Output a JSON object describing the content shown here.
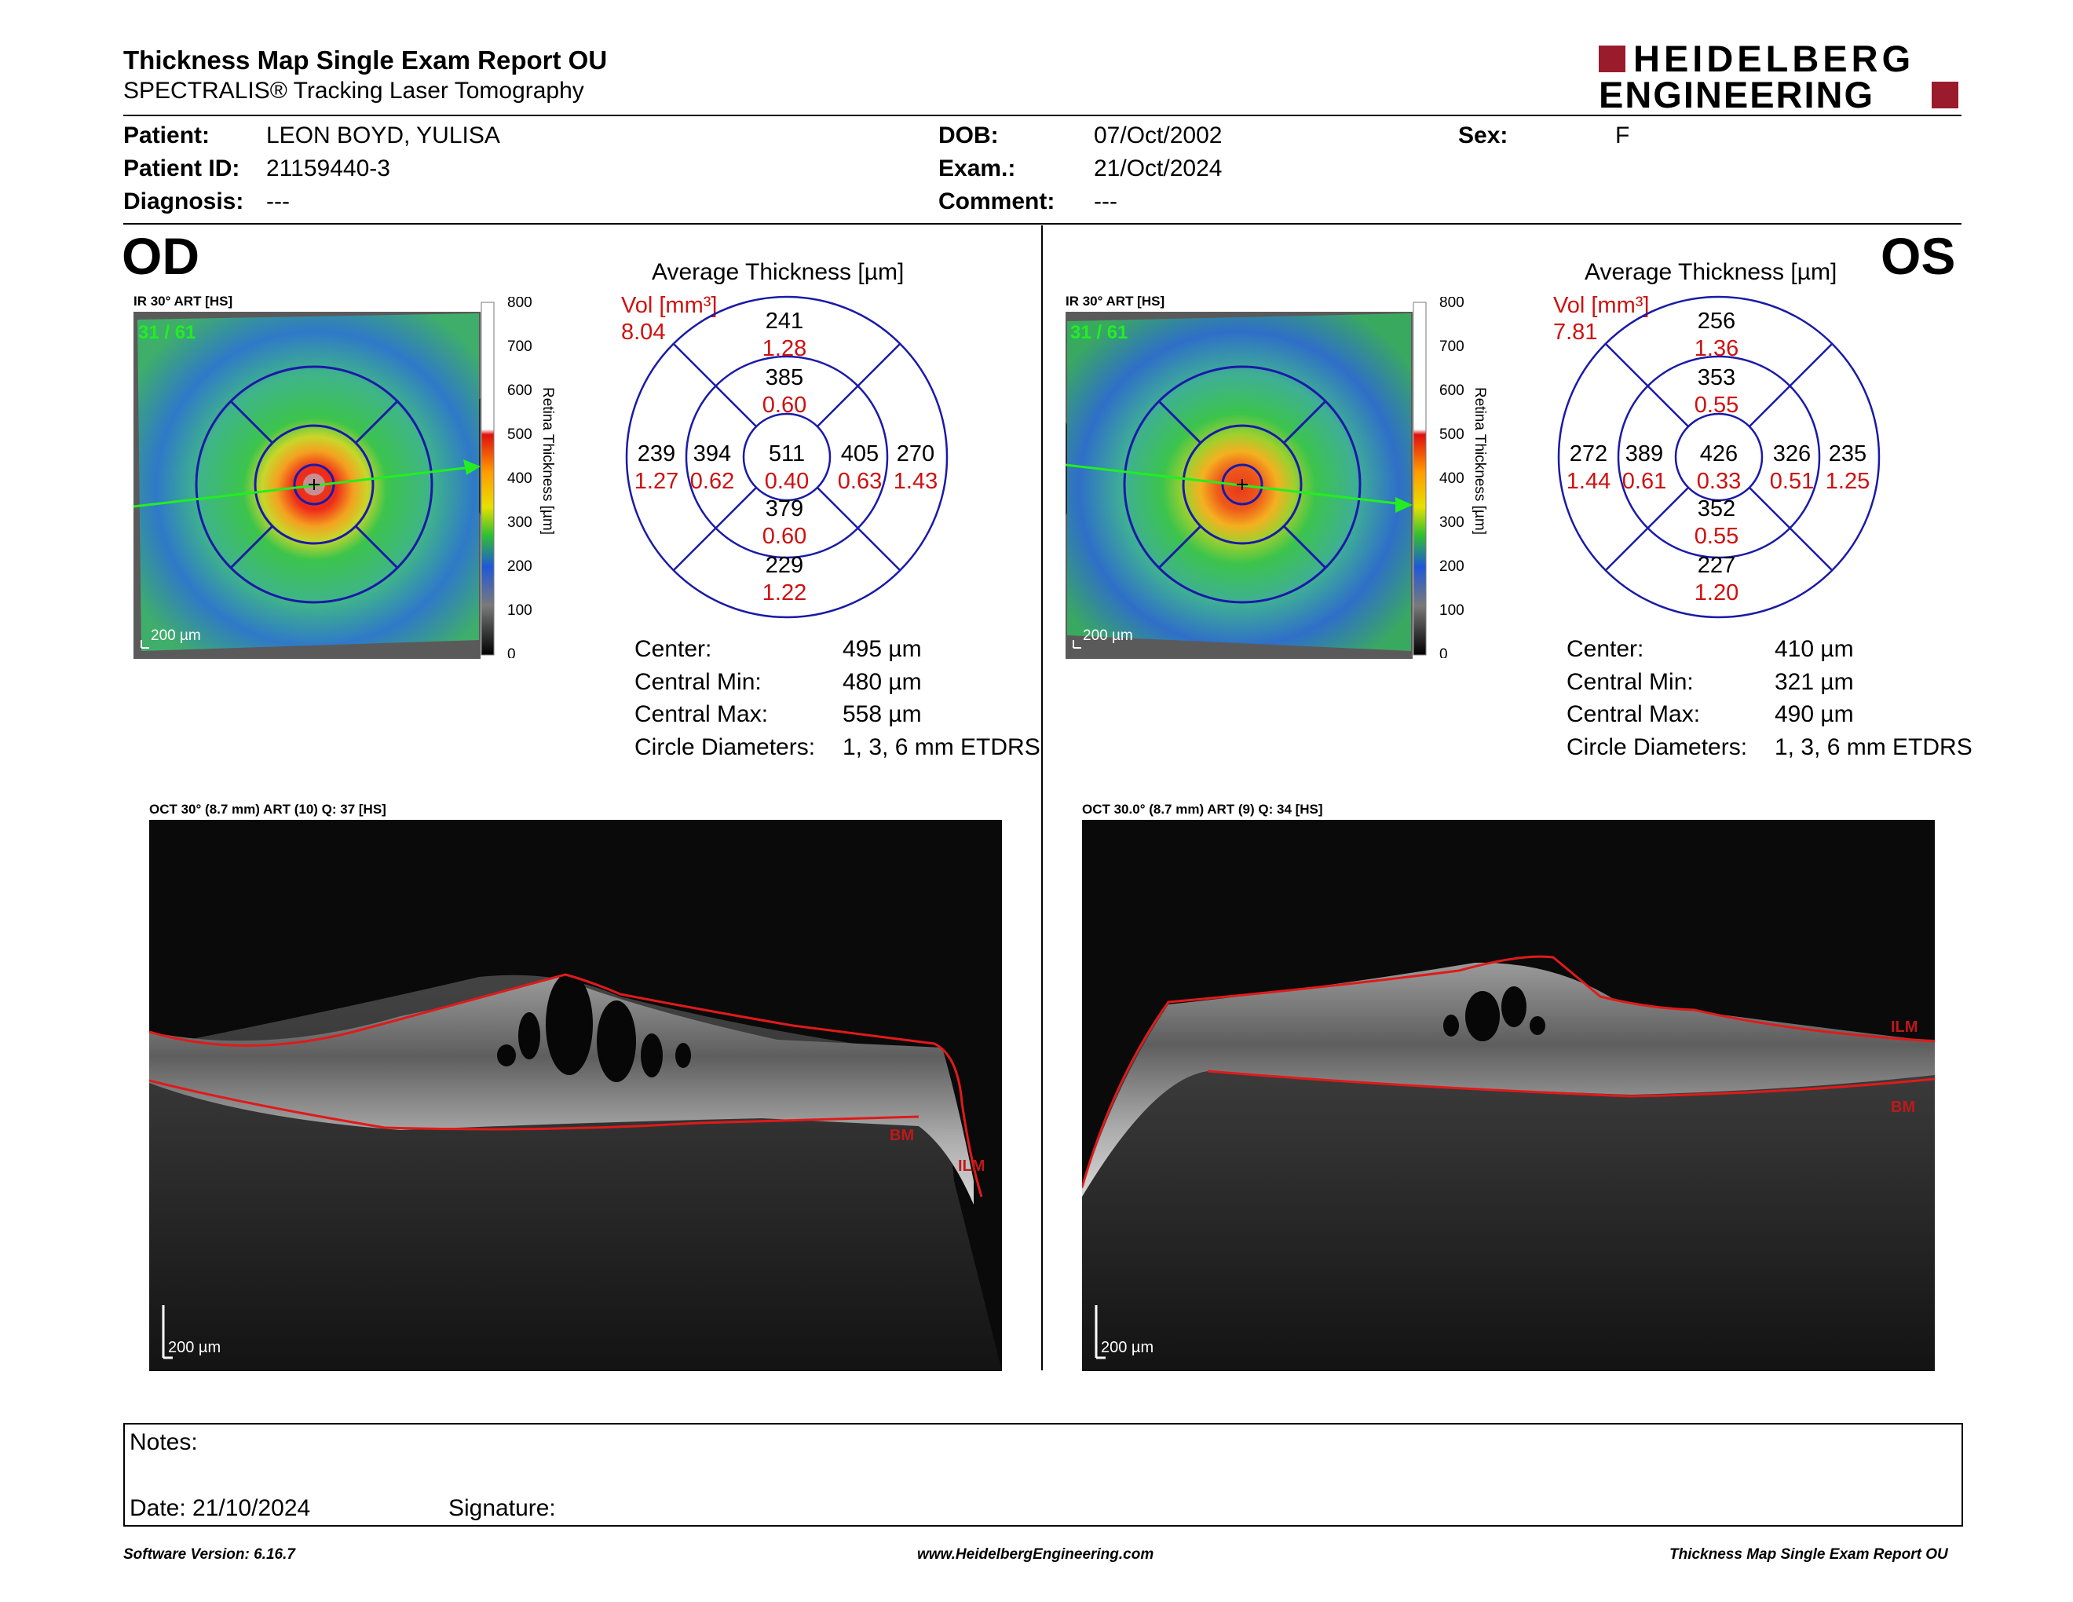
{
  "header": {
    "title": "Thickness Map Single Exam Report OU",
    "subtitle": "SPECTRALIS® Tracking Laser Tomography",
    "logo_line1": "HEIDELBERG",
    "logo_line2": "ENGINEERING",
    "brand_color": "#9a1b2c"
  },
  "patient": {
    "patient_label": "Patient:",
    "patient_value": "LEON BOYD, YULISA",
    "id_label": "Patient ID:",
    "id_value": "21159440-3",
    "diagnosis_label": "Diagnosis:",
    "diagnosis_value": "---",
    "dob_label": "DOB:",
    "dob_value": "07/Oct/2002",
    "exam_label": "Exam.:",
    "exam_value": "21/Oct/2024",
    "comment_label": "Comment:",
    "comment_value": "---",
    "sex_label": "Sex:",
    "sex_value": "F"
  },
  "colorbar": {
    "ticks": [
      "800",
      "700",
      "600",
      "500",
      "400",
      "300",
      "200",
      "100",
      "0"
    ],
    "label": "Retina Thickness [µm]"
  },
  "od": {
    "eye": "OD",
    "ir_caption": "IR 30° ART [HS]",
    "frame_label": "31 / 61",
    "scale_label": "200 µm",
    "avg_title": "Average Thickness [µm]",
    "vol_label": "Vol [mm³]",
    "vol_value": "8.04",
    "grid": {
      "center_t": "511",
      "center_v": "0.40",
      "sup_in_t": "385",
      "sup_in_v": "0.60",
      "sup_out_t": "241",
      "sup_out_v": "1.28",
      "inf_in_t": "379",
      "inf_in_v": "0.60",
      "inf_out_t": "229",
      "inf_out_v": "1.22",
      "left_in_t": "394",
      "left_in_v": "0.62",
      "left_out_t": "239",
      "left_out_v": "1.27",
      "right_in_t": "405",
      "right_in_v": "0.63",
      "right_out_t": "270",
      "right_out_v": "1.43"
    },
    "stats": {
      "center_label": "Center:",
      "center_value": "495 µm",
      "min_label": "Central Min:",
      "min_value": "480 µm",
      "max_label": "Central Max:",
      "max_value": "558 µm",
      "diam_label": "Circle Diameters:",
      "diam_value": "1, 3, 6 mm ETDRS"
    },
    "oct_caption": "OCT 30° (8.7 mm) ART (10) Q: 37 [HS]",
    "oct_scale": "200 µm",
    "layer_bm": "BM",
    "layer_ilm": "ILM"
  },
  "os": {
    "eye": "OS",
    "ir_caption": "IR 30° ART [HS]",
    "frame_label": "31 / 61",
    "scale_label": "200 µm",
    "avg_title": "Average Thickness [µm]",
    "vol_label": "Vol [mm³]",
    "vol_value": "7.81",
    "grid": {
      "center_t": "426",
      "center_v": "0.33",
      "sup_in_t": "353",
      "sup_in_v": "0.55",
      "sup_out_t": "256",
      "sup_out_v": "1.36",
      "inf_in_t": "352",
      "inf_in_v": "0.55",
      "inf_out_t": "227",
      "inf_out_v": "1.20",
      "left_in_t": "389",
      "left_in_v": "0.61",
      "left_out_t": "272",
      "left_out_v": "1.44",
      "right_in_t": "326",
      "right_in_v": "0.51",
      "right_out_t": "235",
      "right_out_v": "1.25"
    },
    "stats": {
      "center_label": "Center:",
      "center_value": "410 µm",
      "min_label": "Central Min:",
      "min_value": "321 µm",
      "max_label": "Central Max:",
      "max_value": "490 µm",
      "diam_label": "Circle Diameters:",
      "diam_value": "1, 3, 6 mm ETDRS"
    },
    "oct_caption": "OCT 30.0° (8.7 mm) ART (9) Q: 34 [HS]",
    "oct_scale": "200 µm",
    "layer_bm": "BM",
    "layer_ilm": "ILM"
  },
  "notes": {
    "notes_label": "Notes:",
    "date_label": "Date: 21/10/2024",
    "signature_label": "Signature:"
  },
  "footer": {
    "software": "Software Version: 6.16.7",
    "website": "www.HeidelbergEngineering.com",
    "report_name": "Thickness Map Single Exam Report OU"
  },
  "colors": {
    "grid_blue": "#1a1aa8",
    "volume_red": "#d01010",
    "frame_green": "#22ee22"
  }
}
